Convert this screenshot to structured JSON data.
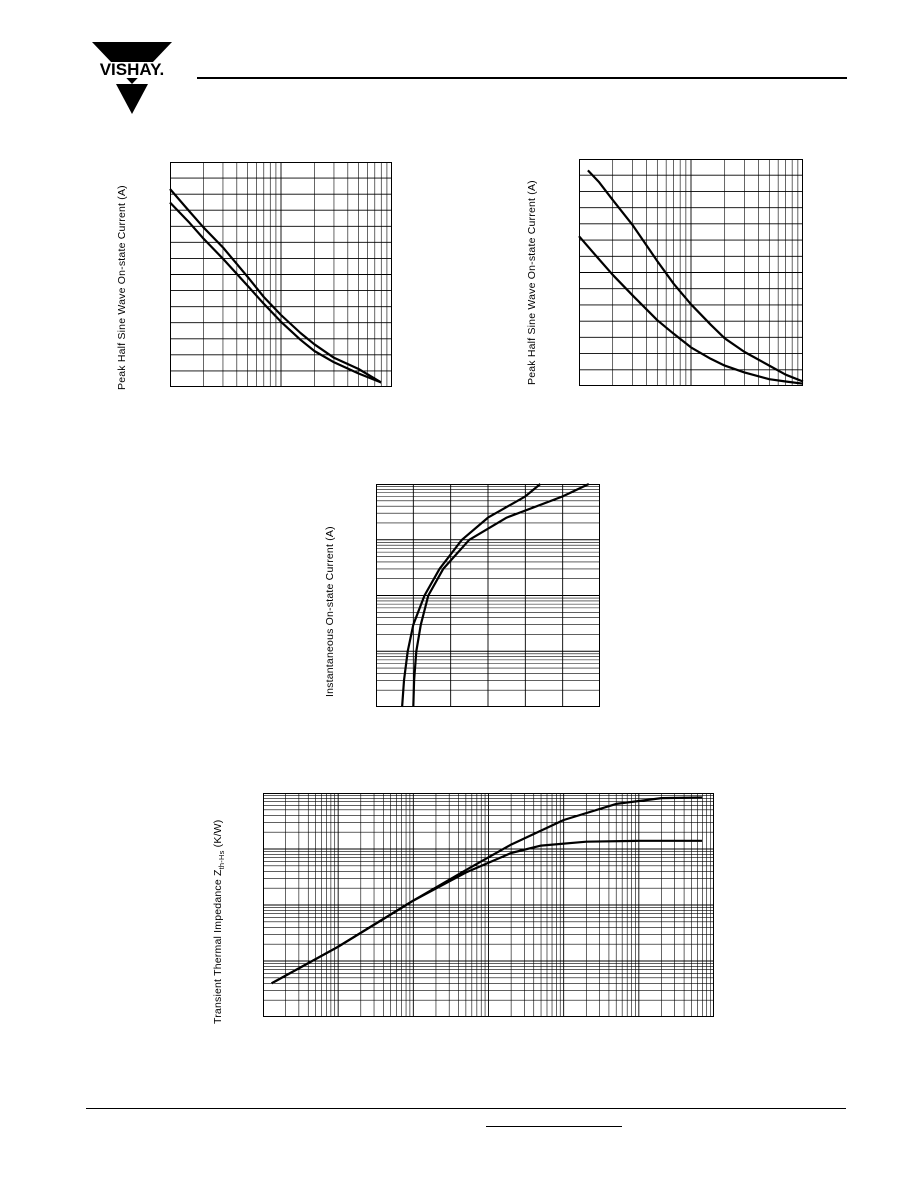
{
  "header": {
    "brand": "VISHAY",
    "brand_dot": ".",
    "brand_color": "#000000"
  },
  "chart_data": [
    {
      "type": "line",
      "xscale": "log",
      "yscale": "linear",
      "grid": true,
      "ylabel": "Peak Half Sine Wave On-state Current (A)",
      "xlim": [
        1,
        100
      ],
      "ylim": [
        0,
        1
      ],
      "series": [
        {
          "x": [
            1,
            1.5,
            2,
            3,
            5,
            7,
            10,
            15,
            20,
            30,
            50,
            80
          ],
          "values": [
            0.88,
            0.78,
            0.71,
            0.62,
            0.49,
            0.4,
            0.32,
            0.24,
            0.19,
            0.13,
            0.08,
            0.02
          ]
        },
        {
          "x": [
            1,
            1.5,
            2,
            3,
            5,
            7,
            10,
            15,
            20,
            30,
            50,
            80
          ],
          "values": [
            0.82,
            0.73,
            0.66,
            0.57,
            0.45,
            0.37,
            0.29,
            0.21,
            0.16,
            0.11,
            0.06,
            0.02
          ]
        }
      ]
    },
    {
      "type": "line",
      "xscale": "log",
      "yscale": "linear",
      "grid": true,
      "ylabel": "Peak Half Sine Wave On-state Current (A)",
      "xlim": [
        1,
        100
      ],
      "ylim": [
        0,
        1
      ],
      "series": [
        {
          "x": [
            1.2,
            1.5,
            2,
            3,
            5,
            7,
            10,
            15,
            20,
            30,
            50,
            70,
            100
          ],
          "values": [
            0.95,
            0.9,
            0.82,
            0.71,
            0.55,
            0.45,
            0.36,
            0.27,
            0.21,
            0.15,
            0.09,
            0.05,
            0.02
          ]
        },
        {
          "x": [
            1,
            1.5,
            2,
            3,
            5,
            7,
            10,
            15,
            20,
            30,
            50,
            70,
            100
          ],
          "values": [
            0.66,
            0.56,
            0.49,
            0.4,
            0.29,
            0.23,
            0.17,
            0.12,
            0.09,
            0.06,
            0.03,
            0.02,
            0.01
          ]
        }
      ]
    },
    {
      "type": "line",
      "xscale": "linear",
      "yscale": "log",
      "grid": true,
      "ylabel": "Instantaneous On-state Current (A)",
      "xlim": [
        0,
        6
      ],
      "ylim": [
        0.1,
        1000
      ],
      "series": [
        {
          "x": [
            0.7,
            0.75,
            0.85,
            1.0,
            1.3,
            1.7,
            2.3,
            3.0,
            4.0,
            4.4
          ],
          "values": [
            0.1,
            0.3,
            1.0,
            3.0,
            10,
            30,
            100,
            250,
            600,
            1000
          ]
        },
        {
          "x": [
            1.0,
            1.02,
            1.08,
            1.2,
            1.4,
            1.8,
            2.5,
            3.5,
            5.0,
            5.7
          ],
          "values": [
            0.1,
            0.3,
            1.0,
            3.0,
            10,
            30,
            100,
            250,
            600,
            1000
          ]
        }
      ]
    },
    {
      "type": "line",
      "xscale": "log",
      "yscale": "log",
      "grid": true,
      "ylabel": "Transient Thermal Impedance Z",
      "ylabel_sub": "th-Hs",
      "ylabel_unit": " (K/W)",
      "xlim": [
        0.0001,
        100
      ],
      "ylim": [
        0.001,
        10
      ],
      "series": [
        {
          "x": [
            0.00013,
            0.001,
            0.01,
            0.05,
            0.2,
            1,
            5,
            20,
            70
          ],
          "values": [
            0.004,
            0.018,
            0.12,
            0.42,
            1.2,
            3.3,
            6.4,
            8.1,
            8.3
          ]
        },
        {
          "x": [
            0.00013,
            0.001,
            0.01,
            0.05,
            0.2,
            0.5,
            2,
            10,
            70
          ],
          "values": [
            0.004,
            0.018,
            0.12,
            0.38,
            0.85,
            1.15,
            1.35,
            1.4,
            1.4
          ]
        }
      ]
    }
  ]
}
